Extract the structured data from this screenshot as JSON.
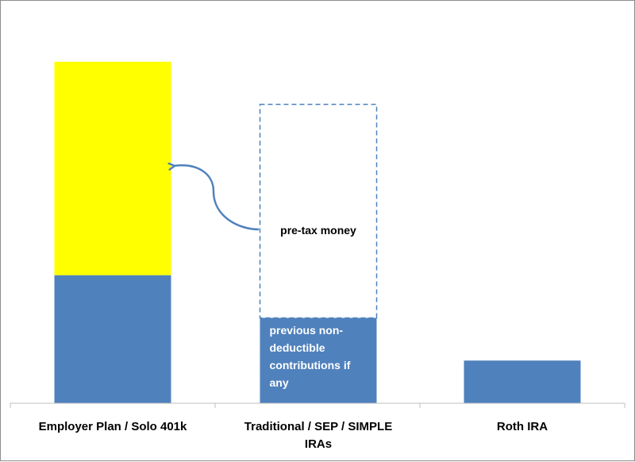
{
  "chart_data": {
    "type": "bar",
    "stacked": true,
    "categories": [
      "Employer Plan / Solo 401k",
      "Traditional / SEP / SIMPLE IRAs",
      "Roth IRA"
    ],
    "category_label_lines": [
      [
        "Employer Plan / Solo 401k"
      ],
      [
        "Traditional / SEP / SIMPLE",
        "IRAs"
      ],
      [
        "Roth IRA"
      ]
    ],
    "series": [
      {
        "values": [
          165,
          110,
          55
        ]
      },
      {
        "values": [
          275,
          0,
          0
        ]
      },
      {
        "style": "dashed-outline",
        "values": [
          0,
          275,
          0
        ]
      }
    ],
    "ylim": [
      0,
      450
    ],
    "grid": false,
    "legend": "none",
    "annotations": {
      "pretax": "pre-tax money",
      "nondeductible": [
        "previous non-",
        "deductible",
        "contributions  if",
        "any"
      ]
    },
    "colors": {
      "blue": "#4f81bd",
      "yellow": "#ffff00",
      "dashed": "#4f81bd",
      "axis": "#bfbfbf",
      "arrow": "#4f81bd"
    }
  }
}
